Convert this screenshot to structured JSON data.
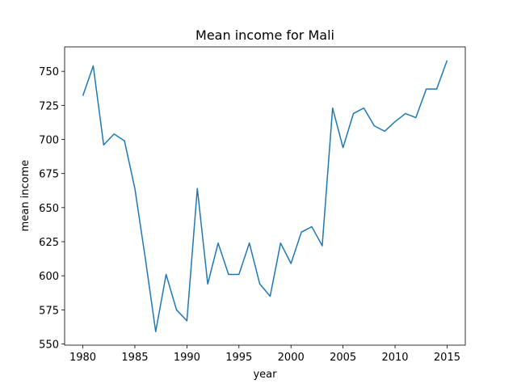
{
  "chart_data": {
    "type": "line",
    "title": "Mean income for Mali",
    "xlabel": "year",
    "ylabel": "mean income",
    "x": [
      1980,
      1981,
      1982,
      1983,
      1984,
      1985,
      1986,
      1987,
      1988,
      1989,
      1990,
      1991,
      1992,
      1993,
      1994,
      1995,
      1996,
      1997,
      1998,
      1999,
      2000,
      2001,
      2002,
      2003,
      2004,
      2005,
      2006,
      2007,
      2008,
      2009,
      2010,
      2011,
      2012,
      2013,
      2014,
      2015
    ],
    "series": [
      {
        "name": "mean income",
        "color": "#1f77b4",
        "values": [
          732,
          754,
          696,
          704,
          699,
          664,
          613,
          559,
          601,
          575,
          567,
          664,
          594,
          624,
          601,
          601,
          624,
          594,
          585,
          624,
          609,
          632,
          636,
          622,
          723,
          694,
          719,
          723,
          710,
          706,
          713,
          719,
          716,
          737,
          737,
          758
        ]
      }
    ],
    "xlim": [
      1978.25,
      2016.75
    ],
    "xticks": [
      1980,
      1985,
      1990,
      1995,
      2000,
      2005,
      2010,
      2015
    ],
    "ylim": [
      549.1,
      767.9
    ],
    "yticks": [
      550,
      575,
      600,
      625,
      650,
      675,
      700,
      725,
      750
    ]
  }
}
